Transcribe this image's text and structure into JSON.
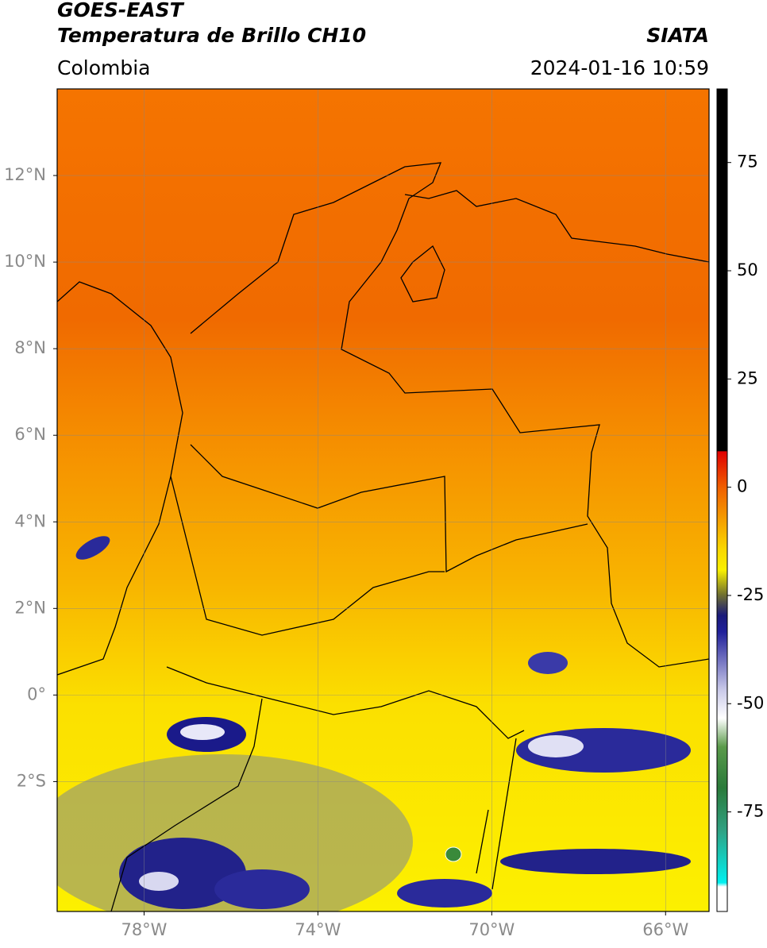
{
  "header": {
    "title": "GOES-EAST",
    "subtitle": "Temperatura de Brillo CH10",
    "source": "SIATA",
    "region": "Colombia",
    "datetime": "2024-01-16 10:59"
  },
  "map": {
    "xlim": [
      -80,
      -65
    ],
    "ylim": [
      -5,
      14
    ],
    "xticks": [
      {
        "value": -78,
        "label": "78°W"
      },
      {
        "value": -74,
        "label": "74°W"
      },
      {
        "value": -70,
        "label": "70°W"
      },
      {
        "value": -66,
        "label": "66°W"
      }
    ],
    "yticks": [
      {
        "value": 12,
        "label": "12°N"
      },
      {
        "value": 10,
        "label": "10°N"
      },
      {
        "value": 8,
        "label": "8°N"
      },
      {
        "value": 6,
        "label": "6°N"
      },
      {
        "value": 4,
        "label": "4°N"
      },
      {
        "value": 2,
        "label": "2°N"
      },
      {
        "value": 0,
        "label": "0°"
      },
      {
        "value": -2,
        "label": "2°S"
      }
    ]
  },
  "colorbar": {
    "lim": [
      -98,
      92
    ],
    "ticks": [
      75,
      50,
      25,
      0,
      -25,
      -50,
      -75
    ]
  }
}
